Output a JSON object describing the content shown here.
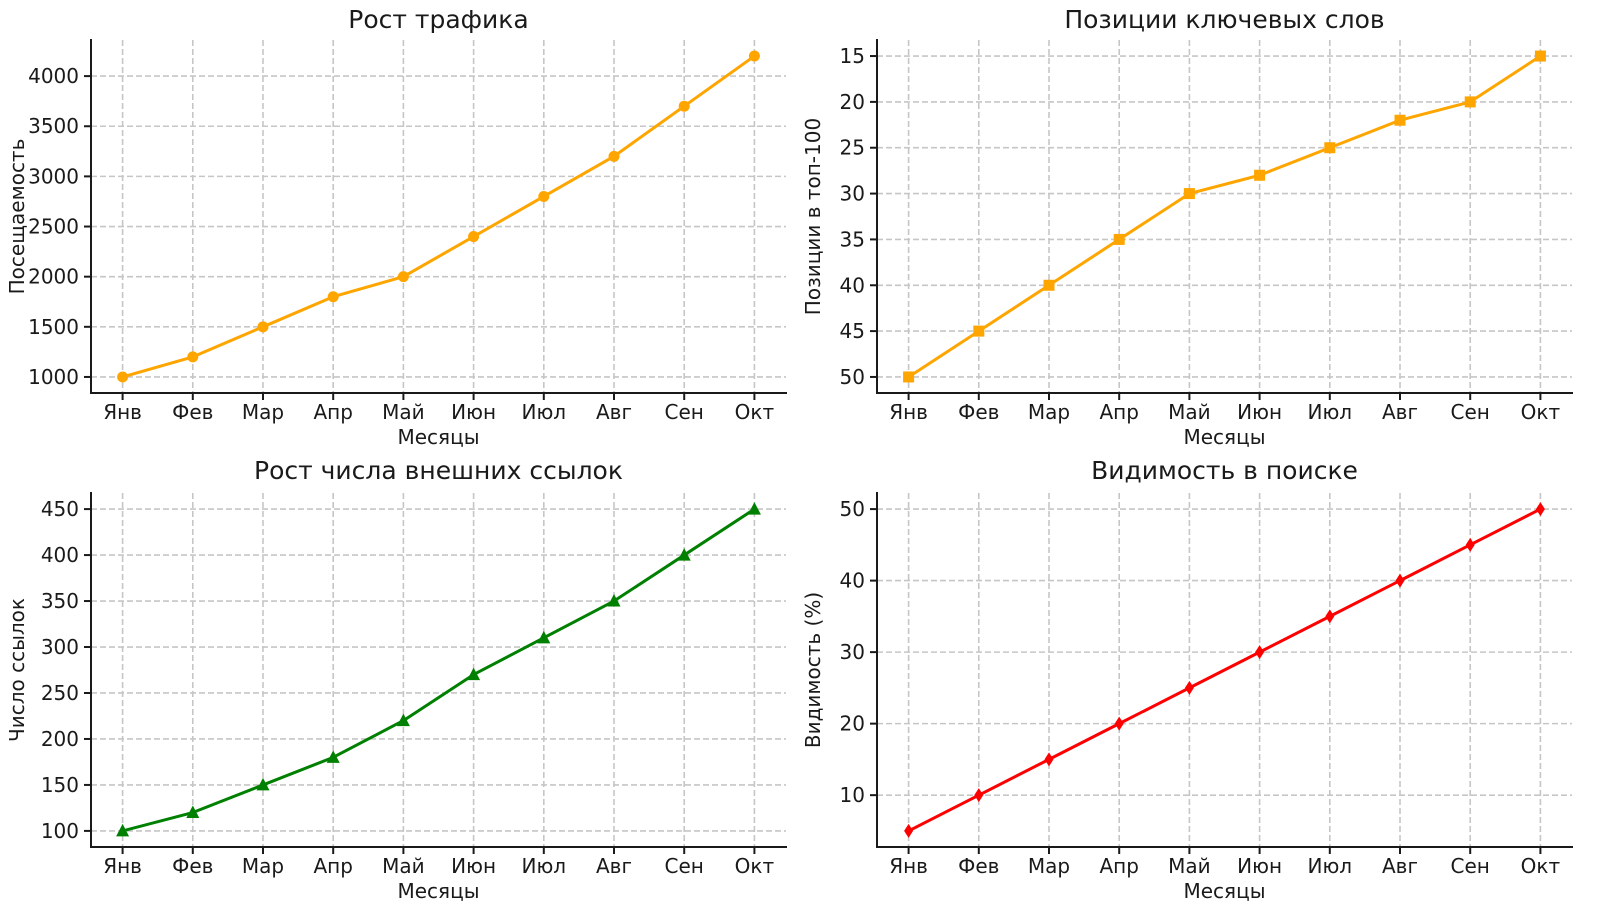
{
  "figure": {
    "background": "#ffffff",
    "text_color": "#1a1a1a",
    "grid_color": "#c6c6c6",
    "spine_color": "#1a1a1a"
  },
  "chart_data": [
    {
      "id": "traffic-growth",
      "type": "line",
      "title": "Рост трафика",
      "xlabel": "Месяцы",
      "ylabel": "Посещаемость",
      "categories": [
        "Янв",
        "Фев",
        "Мар",
        "Апр",
        "Май",
        "Июн",
        "Июл",
        "Авг",
        "Сен",
        "Окт"
      ],
      "values": [
        1000,
        1200,
        1500,
        1800,
        2000,
        2400,
        2800,
        3200,
        3700,
        4200
      ],
      "color": "#FFA500",
      "marker": "circle",
      "yticks": [
        1000,
        1500,
        2000,
        2500,
        3000,
        3500,
        4000
      ],
      "ylim": [
        840,
        4360
      ],
      "y_inverted": false,
      "grid": true,
      "legend": null
    },
    {
      "id": "keyword-positions",
      "type": "line",
      "title": "Позиции ключевых слов",
      "xlabel": "Месяцы",
      "ylabel": "Позиции в топ-100",
      "categories": [
        "Янв",
        "Фев",
        "Мар",
        "Апр",
        "Май",
        "Июн",
        "Июл",
        "Авг",
        "Сен",
        "Окт"
      ],
      "values": [
        50,
        45,
        40,
        35,
        30,
        28,
        25,
        22,
        20,
        15
      ],
      "color": "#FFA500",
      "marker": "square",
      "yticks": [
        15,
        20,
        25,
        30,
        35,
        40,
        45,
        50
      ],
      "ylim": [
        51.75,
        13.25
      ],
      "y_inverted": true,
      "grid": true,
      "legend": null
    },
    {
      "id": "backlinks-growth",
      "type": "line",
      "title": "Рост числа внешних ссылок",
      "xlabel": "Месяцы",
      "ylabel": "Число ссылок",
      "categories": [
        "Янв",
        "Фев",
        "Мар",
        "Апр",
        "Май",
        "Июн",
        "Июл",
        "Авг",
        "Сен",
        "Окт"
      ],
      "values": [
        100,
        120,
        150,
        180,
        220,
        270,
        310,
        350,
        400,
        450
      ],
      "color": "#008000",
      "marker": "triangle-up",
      "yticks": [
        100,
        150,
        200,
        250,
        300,
        350,
        400,
        450
      ],
      "ylim": [
        82.5,
        467.5
      ],
      "y_inverted": false,
      "grid": true,
      "legend": null
    },
    {
      "id": "search-visibility",
      "type": "line",
      "title": "Видимость в поиске",
      "xlabel": "Месяцы",
      "ylabel": "Видимость (%)",
      "categories": [
        "Янв",
        "Фев",
        "Мар",
        "Апр",
        "Май",
        "Июн",
        "Июл",
        "Авг",
        "Сен",
        "Окт"
      ],
      "values": [
        5,
        10,
        15,
        20,
        25,
        30,
        35,
        40,
        45,
        50
      ],
      "color": "#FF0000",
      "marker": "thin-diamond",
      "yticks": [
        10,
        20,
        30,
        40,
        50
      ],
      "ylim": [
        2.75,
        52.25
      ],
      "y_inverted": false,
      "grid": true,
      "legend": null
    }
  ]
}
